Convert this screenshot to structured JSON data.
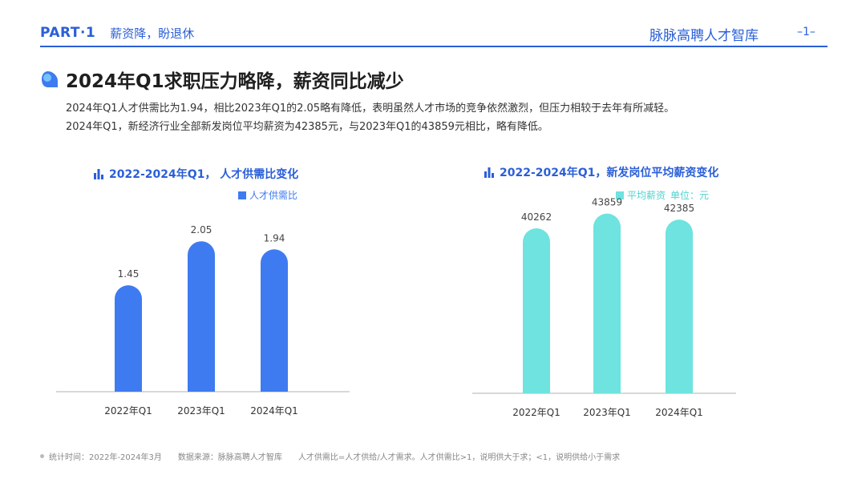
{
  "header": {
    "part_label": "PART·1",
    "part_subtitle": "薪资降，盼退休",
    "brand": "脉脉高聘人才智库",
    "page_number": "–1–"
  },
  "main": {
    "title": "2024年Q1求职压力略降，薪资同比减少",
    "desc_line1": "2024年Q1人才供需比为1.94，相比2023年Q1的2.05略有降低，表明虽然人才市场的竞争依然激烈，但压力相较于去年有所减轻。",
    "desc_line2": "2024年Q1，新经济行业全部新发岗位平均薪资为42385元，与2023年Q1的43859元相比，略有降低。"
  },
  "chart_data": [
    {
      "type": "bar",
      "title": "2022-2024年Q1， 人才供需比变化",
      "legend": "人才供需比",
      "color": "#3f7bf0",
      "categories": [
        "2022年Q1",
        "2023年Q1",
        "2024年Q1"
      ],
      "values": [
        1.45,
        2.05,
        1.94
      ],
      "labels": [
        "1.45",
        "2.05",
        "1.94"
      ],
      "ylim": [
        0,
        2.5
      ]
    },
    {
      "type": "bar",
      "title": "2022-2024年Q1，新发岗位平均薪资变化",
      "legend": "平均薪资",
      "unit": "单位：元",
      "color": "#6ee3df",
      "categories": [
        "2022年Q1",
        "2023年Q1",
        "2024年Q1"
      ],
      "values": [
        40262,
        43859,
        42385
      ],
      "labels": [
        "40262",
        "43859",
        "42385"
      ],
      "ylim": [
        0,
        52000
      ]
    }
  ],
  "footer": {
    "stat_time": "统计时间：2022年-2024年3月",
    "source": "数据来源：脉脉高聘人才智库",
    "note": "人才供需比=人才供给/人才需求。人才供需比>1，说明供大于求；<1，说明供给小于需求"
  }
}
